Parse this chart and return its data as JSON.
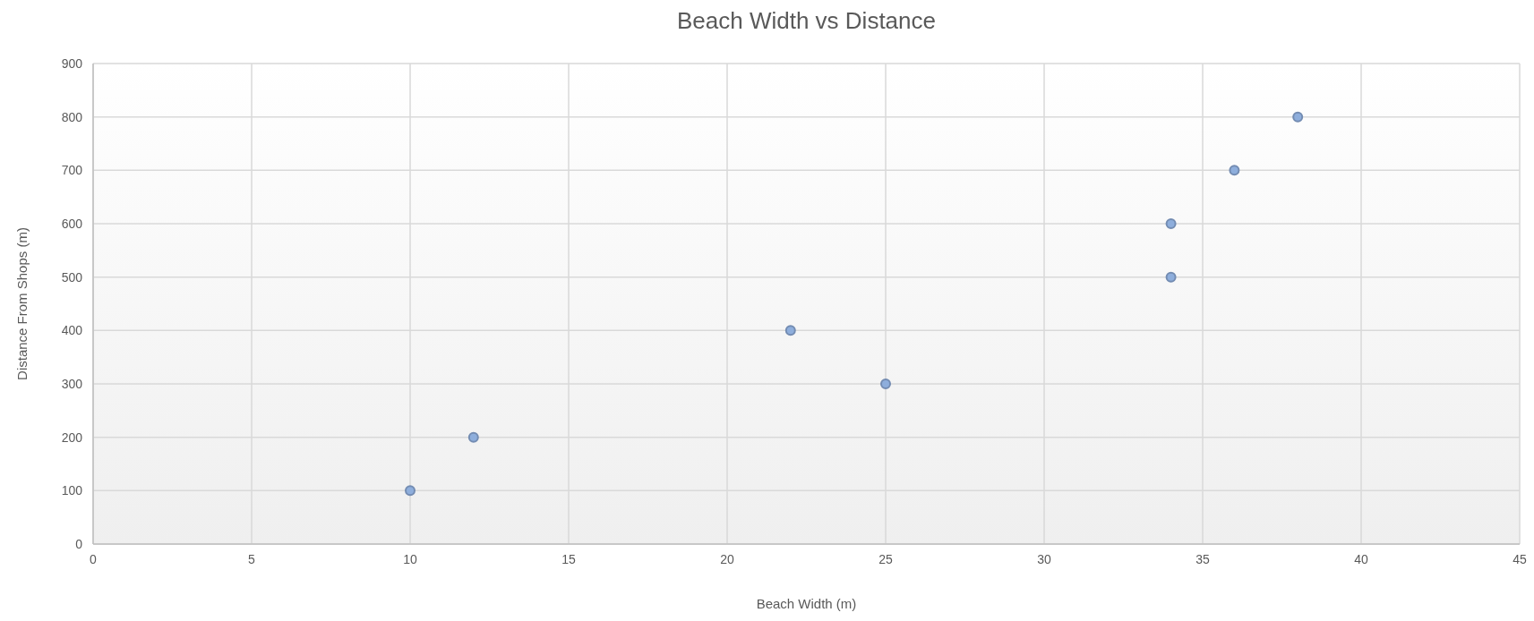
{
  "chart_data": {
    "type": "scatter",
    "title": "Beach Width vs Distance",
    "xlabel": "Beach Width (m)",
    "ylabel": "Distance From Shops (m)",
    "x": [
      10,
      12,
      22,
      25,
      34,
      34,
      36,
      38
    ],
    "values": [
      100,
      200,
      400,
      300,
      500,
      600,
      700,
      800
    ],
    "color": "#8eaedc",
    "xlim": [
      0,
      45
    ],
    "xticks": [
      0,
      5,
      10,
      15,
      20,
      25,
      30,
      35,
      40,
      45
    ],
    "ylim": [
      0,
      900
    ],
    "yticks": [
      0,
      100,
      200,
      300,
      400,
      500,
      600,
      700,
      800,
      900
    ],
    "grid": true,
    "marker": "circle"
  }
}
